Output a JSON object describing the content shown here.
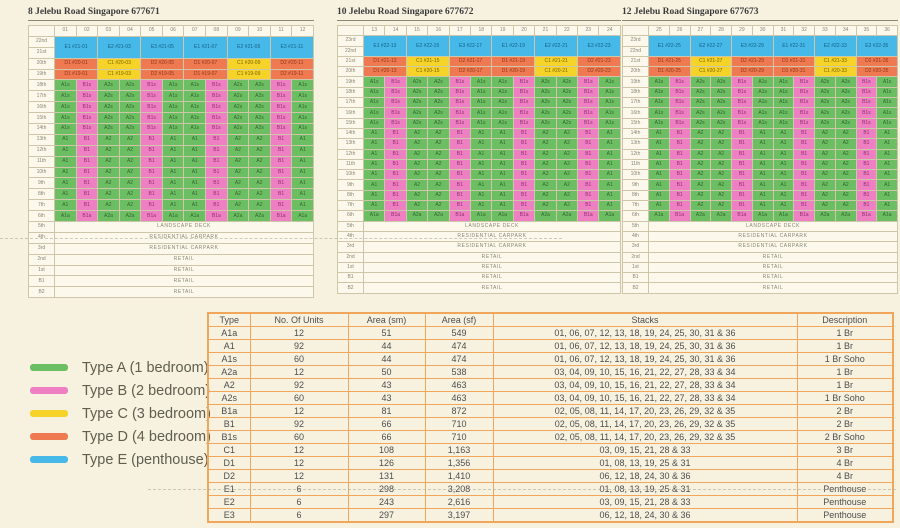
{
  "colors": {
    "background": "#f7f2e0",
    "grid_border": "#cdc6a9",
    "table_border": "#f1a75b",
    "types": {
      "A": {
        "bg": "#6cbe63",
        "fg": "#33632e"
      },
      "B": {
        "bg": "#ee7fc2",
        "fg": "#8f2f6d"
      },
      "C": {
        "bg": "#f5d328",
        "fg": "#7d6405"
      },
      "D": {
        "bg": "#ef7a51",
        "fg": "#8f3415"
      },
      "E": {
        "bg": "#47b9e8",
        "fg": "#135e86"
      }
    }
  },
  "buildings": [
    {
      "title": "8 Jelebu Road Singapore 677671",
      "stacks": [
        "01",
        "02",
        "03",
        "04",
        "05",
        "06",
        "07",
        "08",
        "09",
        "10",
        "11",
        "12"
      ],
      "floors": {
        "penthouse": [
          "22nd",
          "21st"
        ],
        "upper": [
          "20th",
          "19th"
        ],
        "soho": [
          "18th",
          "17th",
          "16th",
          "15th",
          "14th"
        ],
        "typical": [
          "13th",
          "12th",
          "11th",
          "10th",
          "9th",
          "8th",
          "7th"
        ],
        "garden": "6th",
        "base": [
          [
            "5th",
            "LANDSCAPE DECK"
          ],
          [
            "4th",
            "RESIDENTIAL CARPARK"
          ],
          [
            "3rd",
            "RESIDENTIAL CARPARK"
          ],
          [
            "2nd",
            "RETAIL"
          ],
          [
            "1st",
            "RETAIL"
          ],
          [
            "B1",
            "RETAIL"
          ],
          [
            "B2",
            "RETAIL"
          ]
        ]
      },
      "penthouse_cells": [
        "E1 #21-01",
        "E2 #21-03",
        "E3 #21-05",
        "E1 #21-07",
        "E2 #21-09",
        "E3 #21-11"
      ],
      "upper_pattern": [
        "D1",
        "C1",
        "D2",
        "D1",
        "C1",
        "D2"
      ],
      "stack_pattern": [
        "A1",
        "B1",
        "A2",
        "A2",
        "B1",
        "A1",
        "A1",
        "B1",
        "A2",
        "A2",
        "B1",
        "A1"
      ]
    },
    {
      "title": "10 Jelebu Road Singapore 677672",
      "stacks": [
        "13",
        "14",
        "15",
        "16",
        "17",
        "18",
        "19",
        "20",
        "21",
        "22",
        "23",
        "24"
      ],
      "floors": {
        "penthouse": [
          "23rd",
          "22nd"
        ],
        "upper": [
          "21st",
          "20th"
        ],
        "soho": [
          "19th",
          "18th",
          "17th",
          "16th",
          "15th"
        ],
        "typical": [
          "14th",
          "13th",
          "12th",
          "11th",
          "10th",
          "9th",
          "8th",
          "7th"
        ],
        "garden": "6th",
        "base": [
          [
            "5th",
            "LANDSCAPE DECK"
          ],
          [
            "4th",
            "RESIDENTIAL CARPARK"
          ],
          [
            "3rd",
            "RESIDENTIAL CARPARK"
          ],
          [
            "2nd",
            "RETAIL"
          ],
          [
            "1st",
            "RETAIL"
          ],
          [
            "B1",
            "RETAIL"
          ],
          [
            "B2",
            "RETAIL"
          ]
        ]
      },
      "penthouse_cells": [
        "E1 #22-13",
        "E2 #22-15",
        "E3 #22-17",
        "E1 #22-19",
        "E2 #22-21",
        "E3 #22-23"
      ],
      "upper_pattern": [
        "D1",
        "C1",
        "D2",
        "D1",
        "C1",
        "D2"
      ],
      "stack_pattern": [
        "A1",
        "B1",
        "A2",
        "A2",
        "B1",
        "A1",
        "A1",
        "B1",
        "A2",
        "A2",
        "B1",
        "A1"
      ]
    },
    {
      "title": "12 Jelebu Road Singapore 677673",
      "stacks": [
        "25",
        "26",
        "27",
        "28",
        "29",
        "30",
        "31",
        "32",
        "33",
        "34",
        "35",
        "36"
      ],
      "floors": {
        "penthouse": [
          "23rd",
          "22nd"
        ],
        "upper": [
          "21st",
          "20th"
        ],
        "soho": [
          "19th",
          "18th",
          "17th",
          "16th",
          "15th"
        ],
        "typical": [
          "14th",
          "13th",
          "12th",
          "11th",
          "10th",
          "9th",
          "8th",
          "7th"
        ],
        "garden": "6th",
        "base": [
          [
            "5th",
            "LANDSCAPE DECK"
          ],
          [
            "4th",
            "RESIDENTIAL CARPARK"
          ],
          [
            "3rd",
            "RESIDENTIAL CARPARK"
          ],
          [
            "2nd",
            "RETAIL"
          ],
          [
            "1st",
            "RETAIL"
          ],
          [
            "B1",
            "RETAIL"
          ],
          [
            "B2",
            "RETAIL"
          ]
        ]
      },
      "penthouse_cells": [
        "E1 #22-25",
        "E2 #22-27",
        "E3 #22-29",
        "E1 #22-31",
        "E2 #22-33",
        "E3 #22-35"
      ],
      "upper_pattern": [
        "D1",
        "C1",
        "D2",
        "D1",
        "C1",
        "D2"
      ],
      "stack_pattern": [
        "A1",
        "B1",
        "A2",
        "A2",
        "B1",
        "A1",
        "A1",
        "B1",
        "A2",
        "A2",
        "B1",
        "A1"
      ]
    }
  ],
  "legend": {
    "items": [
      {
        "label": "Type A (1 bedroom)",
        "color": "#6cbe63"
      },
      {
        "label": "Type B (2 bedroom)",
        "color": "#ee7fc2"
      },
      {
        "label": "Type C (3 bedroom)",
        "color": "#f5d328"
      },
      {
        "label": "Type D (4 bedroom)",
        "color": "#ef7a51"
      },
      {
        "label": "Type E (penthouse)",
        "color": "#47b9e8"
      }
    ]
  },
  "table": {
    "headers": [
      "Type",
      "No. Of Units",
      "Area (sm)",
      "Area (sf)",
      "Stacks",
      "Description"
    ],
    "rows": [
      [
        "A1a",
        "12",
        "51",
        "549",
        "01, 06, 07, 12, 13, 18, 19, 24, 25, 30, 31 & 36",
        "1 Br"
      ],
      [
        "A1",
        "92",
        "44",
        "474",
        "01, 06, 07, 12, 13, 18, 19, 24, 25, 30, 31 & 36",
        "1 Br"
      ],
      [
        "A1s",
        "60",
        "44",
        "474",
        "01, 06, 07, 12, 13, 18, 19, 24, 25, 30, 31 & 36",
        "1 Br Soho"
      ],
      [
        "A2a",
        "12",
        "50",
        "538",
        "03, 04, 09, 10, 15, 16, 21, 22, 27, 28, 33 & 34",
        "1 Br"
      ],
      [
        "A2",
        "92",
        "43",
        "463",
        "03, 04, 09, 10, 15, 16, 21, 22, 27, 28, 33 & 34",
        "1 Br"
      ],
      [
        "A2s",
        "60",
        "43",
        "463",
        "03, 04, 09, 10, 15, 16, 21, 22, 27, 28, 33 & 34",
        "1 Br Soho"
      ],
      [
        "B1a",
        "12",
        "81",
        "872",
        "02, 05, 08, 11, 14, 17, 20, 23, 26, 29, 32 & 35",
        "2 Br"
      ],
      [
        "B1",
        "92",
        "66",
        "710",
        "02, 05, 08, 11, 14, 17, 20, 23, 26, 29, 32 & 35",
        "2 Br"
      ],
      [
        "B1s",
        "60",
        "66",
        "710",
        "02, 05, 08, 11, 14, 17, 20, 23, 26, 29, 32 & 35",
        "2 Br Soho"
      ],
      [
        "C1",
        "12",
        "108",
        "1,163",
        "03, 09, 15, 21, 28 & 33",
        "3 Br"
      ],
      [
        "D1",
        "12",
        "126",
        "1,356",
        "01, 08, 13, 19, 25 & 31",
        "4 Br"
      ],
      [
        "D2",
        "12",
        "131",
        "1,410",
        "06, 12, 18, 24, 30 & 36",
        "4 Br"
      ],
      [
        "E1",
        "6",
        "298",
        "3,208",
        "01, 08, 13, 19, 25 & 31",
        "Penthouse"
      ],
      [
        "E2",
        "6",
        "243",
        "2,616",
        "03, 09, 15, 21, 28 & 33",
        "Penthouse"
      ],
      [
        "E3",
        "6",
        "297",
        "3,197",
        "06, 12, 18, 24, 30 & 36",
        "Penthouse"
      ]
    ]
  }
}
